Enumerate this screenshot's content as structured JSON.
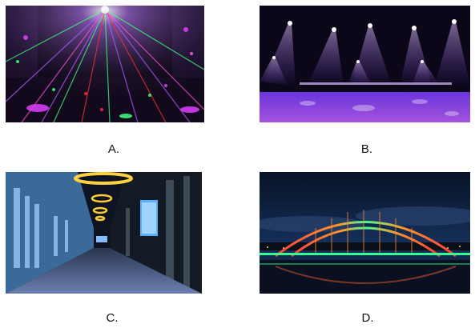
{
  "options": [
    {
      "key": "a",
      "label": "A.",
      "depicts": "disco-laser-lights-room"
    },
    {
      "key": "b",
      "label": "B.",
      "depicts": "stage-spotlights"
    },
    {
      "key": "c",
      "label": "C.",
      "depicts": "lit-corridor-interior"
    },
    {
      "key": "d",
      "label": "D.",
      "depicts": "illuminated-arch-bridge-at-night"
    }
  ],
  "colors": {
    "background": "#ffffff",
    "caption_text": "#111111",
    "panel_a_bg": "#0a0612",
    "panel_b_bg": "#0b0718",
    "panel_c_bg": "#0d1320",
    "panel_d_sky": "#0a1730"
  }
}
